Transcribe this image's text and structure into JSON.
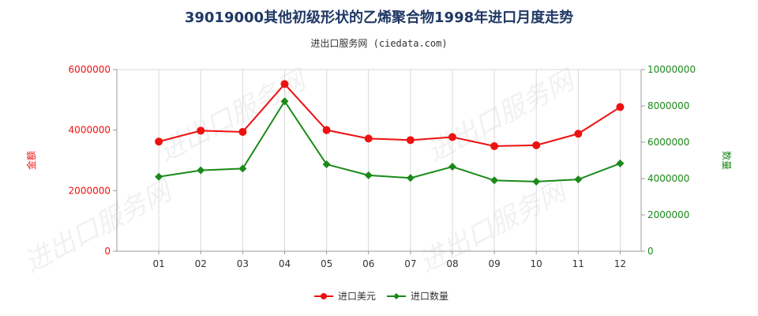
{
  "title": "39019000其他初级形状的乙烯聚合物1998年进口月度走势",
  "subtitle": "进出口服务网 (ciedata.com)",
  "watermark": "进出口服务网",
  "chart_data": {
    "type": "line",
    "categories": [
      "01",
      "02",
      "03",
      "04",
      "05",
      "06",
      "07",
      "08",
      "09",
      "10",
      "11",
      "12"
    ],
    "series": [
      {
        "name": "进口美元",
        "axis": "left",
        "color": "#ee1111",
        "marker": "circle",
        "values": [
          3620000,
          3980000,
          3940000,
          5520000,
          4000000,
          3720000,
          3670000,
          3770000,
          3470000,
          3500000,
          3880000,
          4760000
        ]
      },
      {
        "name": "进口数量",
        "axis": "right",
        "color": "#1a8a1a",
        "marker": "diamond",
        "values": [
          4100000,
          4450000,
          4550000,
          8250000,
          4780000,
          4180000,
          4030000,
          4650000,
          3900000,
          3830000,
          3950000,
          4830000
        ]
      }
    ],
    "y_left": {
      "label": "金额",
      "color": "#ee1111",
      "range": [
        0,
        6000000
      ],
      "ticks": [
        0,
        2000000,
        4000000,
        6000000
      ],
      "tick_labels": [
        "0",
        "2000000",
        "4000000",
        "6000000"
      ]
    },
    "y_right": {
      "label": "数量",
      "color": "#1a8a1a",
      "range": [
        0,
        10000000
      ],
      "ticks": [
        0,
        2000000,
        4000000,
        6000000,
        8000000,
        10000000
      ],
      "tick_labels": [
        "0",
        "2000000",
        "4000000",
        "6000000",
        "8000000",
        "10000000"
      ]
    },
    "grid": "vertical",
    "legend": "bottom-center"
  }
}
